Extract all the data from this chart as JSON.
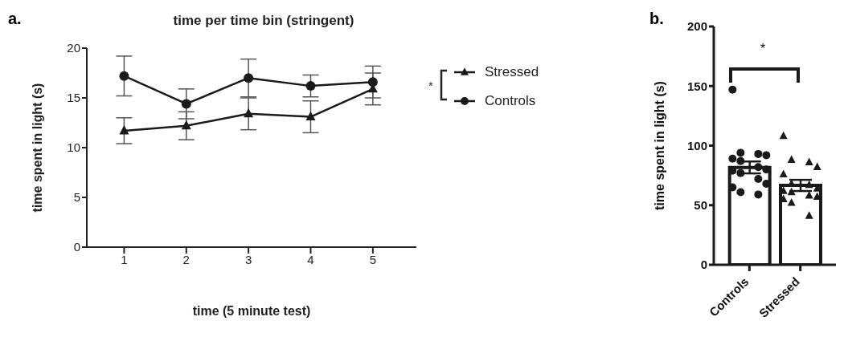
{
  "chart_data": [
    {
      "type": "line",
      "title": "time per time bin (stringent)",
      "xlabel": "time (5 minute test)",
      "ylabel": "time spent in light (s)",
      "x": [
        1,
        2,
        3,
        4,
        5
      ],
      "xlim": [
        0.4,
        5.7
      ],
      "xticks": [
        1,
        2,
        3,
        4,
        5
      ],
      "ylim": [
        0,
        20
      ],
      "yticks": [
        0,
        5,
        10,
        15,
        20
      ],
      "legend": "right",
      "series": [
        {
          "name": "Stressed",
          "color": "#1a1a1a",
          "marker": "triangle",
          "values": [
            11.7,
            12.2,
            13.4,
            13.1,
            15.9
          ],
          "errors": [
            1.3,
            1.4,
            1.6,
            1.6,
            1.6
          ]
        },
        {
          "name": "Controls",
          "color": "#1a1a1a",
          "marker": "circle",
          "values": [
            17.2,
            14.4,
            17.0,
            16.2,
            16.6
          ],
          "errors": [
            2.0,
            1.5,
            1.9,
            1.1,
            1.6
          ]
        }
      ],
      "annotations": [
        "a.",
        "*"
      ]
    },
    {
      "type": "bar",
      "ylabel": "time spent in light (s)",
      "categories": [
        "Controls",
        "Stressed"
      ],
      "ylim": [
        0,
        200
      ],
      "yticks": [
        0,
        50,
        100,
        150,
        200
      ],
      "series": [
        {
          "type": "bar",
          "color": "#1a1a1a",
          "values": [
            81.7,
            66.6
          ],
          "errors": [
            5,
            4.7
          ]
        },
        {
          "type": "scatter",
          "color": "#1a1a1a",
          "marker": "circle",
          "x": [
            "Controls",
            "Controls",
            "Controls",
            "Controls",
            "Controls",
            "Controls",
            "Controls",
            "Controls",
            "Controls",
            "Controls",
            "Controls",
            "Controls",
            "Controls",
            "Controls",
            "Controls"
          ],
          "values": [
            147,
            94,
            93,
            92,
            89,
            87,
            82,
            80,
            79,
            77,
            72,
            68,
            65,
            61,
            59
          ]
        },
        {
          "type": "scatter",
          "color": "#1a1a1a",
          "marker": "triangle",
          "x": [
            "Stressed",
            "Stressed",
            "Stressed",
            "Stressed",
            "Stressed",
            "Stressed",
            "Stressed",
            "Stressed",
            "Stressed",
            "Stressed",
            "Stressed",
            "Stressed",
            "Stressed",
            "Stressed",
            "Stressed"
          ],
          "values": [
            108,
            88,
            86,
            82,
            76,
            68,
            67,
            64,
            62,
            61,
            58,
            57,
            55,
            52,
            41
          ]
        }
      ],
      "annotations": [
        "b.",
        "*"
      ]
    }
  ]
}
